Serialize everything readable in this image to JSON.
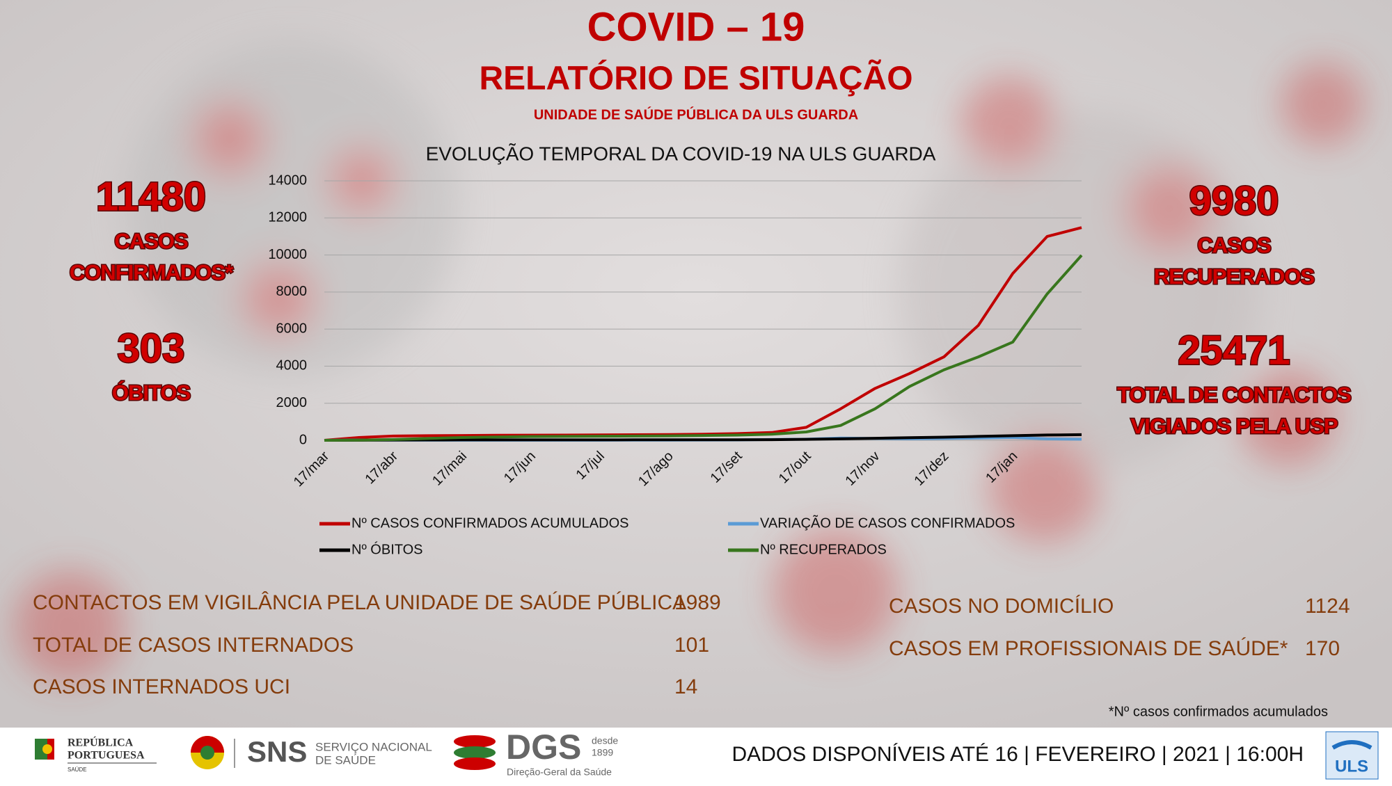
{
  "header": {
    "title": "COVID – 19",
    "subtitle": "RELATÓRIO DE SITUAÇÃO",
    "unit": "UNIDADE DE SAÚDE PÚBLICA DA ULS GUARDA"
  },
  "stats": {
    "left": [
      {
        "value": 11480,
        "label": [
          "CASOS",
          "CONFIRMADOS*"
        ]
      },
      {
        "value": 303,
        "label": [
          "ÓBITOS"
        ]
      }
    ],
    "right": [
      {
        "value": 9980,
        "label": [
          "CASOS",
          "RECUPERADOS"
        ]
      },
      {
        "value": 25471,
        "label": [
          "TOTAL DE CONTACTOS",
          "VIGIADOS PELA USP"
        ]
      }
    ]
  },
  "chart_data": {
    "type": "line",
    "title": "EVOLUÇÃO TEMPORAL DA COVID-19 NA ULS GUARDA",
    "categories": [
      "17/mar",
      null,
      "17/abr",
      null,
      "17/mai",
      null,
      "17/jun",
      null,
      "17/jul",
      null,
      "17/ago",
      null,
      "17/set",
      null,
      "17/out",
      null,
      "17/nov",
      null,
      "17/dez",
      null,
      "17/jan",
      null,
      null
    ],
    "series": [
      {
        "name": "Nº CASOS CONFIRMADOS ACUMULADOS",
        "color": "#c00000",
        "values": [
          0,
          150,
          230,
          250,
          260,
          270,
          275,
          280,
          290,
          300,
          310,
          330,
          360,
          420,
          700,
          1700,
          2800,
          3600,
          4500,
          6200,
          9000,
          11000,
          11480
        ]
      },
      {
        "name": "VARIAÇÃO DE CASOS CONFIRMADOS",
        "color": "#5b9bd5",
        "values": [
          0,
          20,
          10,
          5,
          5,
          5,
          5,
          5,
          5,
          10,
          10,
          15,
          20,
          40,
          60,
          120,
          100,
          80,
          100,
          120,
          150,
          80,
          60
        ]
      },
      {
        "name": "Nº ÓBITOS",
        "color": "#000000",
        "values": [
          0,
          5,
          15,
          20,
          22,
          23,
          24,
          25,
          25,
          26,
          27,
          28,
          30,
          35,
          50,
          80,
          110,
          140,
          170,
          210,
          250,
          285,
          303
        ]
      },
      {
        "name": "Nº RECUPERADOS",
        "color": "#38761d",
        "values": [
          0,
          10,
          40,
          100,
          150,
          180,
          200,
          210,
          220,
          230,
          240,
          260,
          280,
          330,
          450,
          800,
          1700,
          2900,
          3800,
          4500,
          5300,
          7900,
          9980
        ]
      }
    ],
    "ylim": [
      0,
      14000
    ],
    "yticks": [
      0,
      2000,
      4000,
      6000,
      8000,
      10000,
      12000,
      14000
    ],
    "grid": true
  },
  "info": {
    "left": [
      [
        "CONTACTOS EM VIGILÂNCIA PELA UNIDADE DE SAÚDE PÚBLICA",
        1989
      ],
      [
        "TOTAL DE CASOS INTERNADOS",
        101
      ],
      [
        "CASOS INTERNADOS UCI",
        14
      ]
    ],
    "right": [
      [
        "CASOS NO DOMICÍLIO",
        1124
      ],
      [
        "CASOS EM PROFISSIONAIS DE SAÚDE*",
        170
      ]
    ]
  },
  "footnote": "*Nº casos confirmados acumulados",
  "footer": {
    "text": "DADOS DISPONÍVEIS ATÉ 16 | FEVEREIRO | 2021 | 16:00H",
    "logos": {
      "republica": [
        "REPÚBLICA",
        "PORTUGUESA",
        "SAÚDE"
      ],
      "sns": "SNS",
      "sns_name": [
        "SERVIÇO NACIONAL",
        "DE SAÚDE"
      ],
      "dgs": "DGS",
      "dgs_since": [
        "desde",
        "1899"
      ],
      "dgs_name": "Direção-Geral da Saúde",
      "uls": "ULS"
    }
  }
}
